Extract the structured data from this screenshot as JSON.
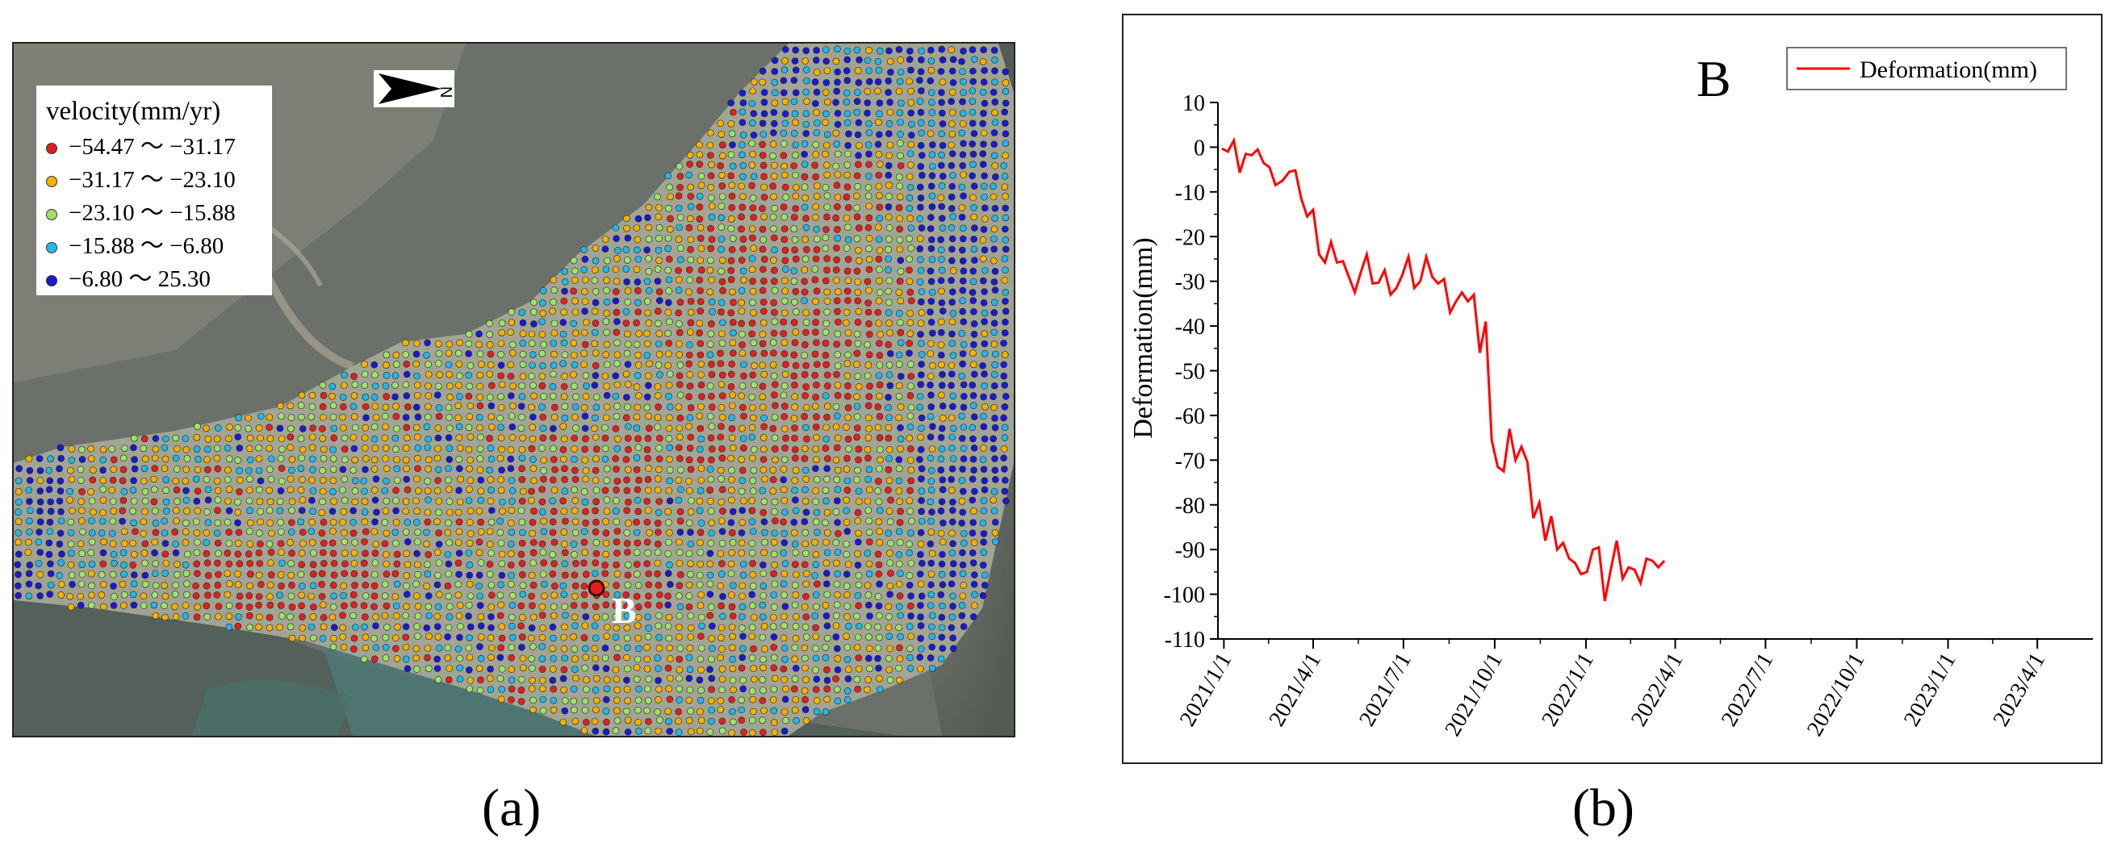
{
  "panels": {
    "a_caption": "(a)",
    "b_caption": "(b)"
  },
  "map": {
    "legend_title": "velocity(mm/yr)",
    "legend_items": [
      {
        "label": "−54.47 ～ −31.17",
        "color": "#e02020"
      },
      {
        "label": "−31.17 ～ −23.10",
        "color": "#f5b000"
      },
      {
        "label": "−23.10 ～ −15.88",
        "color": "#9fe06a"
      },
      {
        "label": "−15.88 ～ −6.80",
        "color": "#23b6e8"
      },
      {
        "label": "−6.80 ～ 25.30",
        "color": "#1a1ad0"
      }
    ],
    "north_letter": "N",
    "point_label": "B"
  },
  "chart_data": {
    "type": "line",
    "annotation": "B",
    "ylabel": "Deformation(mm)",
    "xlabel": "",
    "ylim": [
      -110,
      10
    ],
    "yticks": [
      10,
      0,
      -10,
      -20,
      -30,
      -40,
      -50,
      -60,
      -70,
      -80,
      -90,
      -100,
      -110
    ],
    "xticks": [
      "2021/1/1",
      "2021/4/1",
      "2021/7/1",
      "2021/10/1",
      "2022/1/1",
      "2022/4/1",
      "2022/7/1",
      "2022/10/1",
      "2023/1/1",
      "2023/4/1"
    ],
    "xlim": [
      "2020-12-26",
      "2023-05-27"
    ],
    "series": [
      {
        "name": "Deformation(mm)",
        "color": "#ff0000",
        "points": [
          [
            "2020-12-30",
            -0.3
          ],
          [
            "2021-01-05",
            -1.0
          ],
          [
            "2021-01-11",
            1.5
          ],
          [
            "2021-01-17",
            -5.7
          ],
          [
            "2021-01-23",
            -1.5
          ],
          [
            "2021-01-29",
            -1.8
          ],
          [
            "2021-02-04",
            -0.5
          ],
          [
            "2021-02-10",
            -3.5
          ],
          [
            "2021-02-16",
            -4.5
          ],
          [
            "2021-02-22",
            -8.5
          ],
          [
            "2021-03-01",
            -7.5
          ],
          [
            "2021-03-08",
            -5.5
          ],
          [
            "2021-03-14",
            -5.2
          ],
          [
            "2021-03-20",
            -11.5
          ],
          [
            "2021-03-26",
            -15.5
          ],
          [
            "2021-04-01",
            -14.0
          ],
          [
            "2021-04-07",
            -24.0
          ],
          [
            "2021-04-13",
            -25.8
          ],
          [
            "2021-04-19",
            -21.2
          ],
          [
            "2021-04-25",
            -25.8
          ],
          [
            "2021-05-01",
            -25.5
          ],
          [
            "2021-05-07",
            -29.0
          ],
          [
            "2021-05-13",
            -32.5
          ],
          [
            "2021-05-19",
            -28.0
          ],
          [
            "2021-05-25",
            -24.0
          ],
          [
            "2021-05-31",
            -30.5
          ],
          [
            "2021-06-06",
            -30.3
          ],
          [
            "2021-06-12",
            -27.5
          ],
          [
            "2021-06-18",
            -33.0
          ],
          [
            "2021-06-24",
            -31.5
          ],
          [
            "2021-06-30",
            -28.5
          ],
          [
            "2021-07-06",
            -24.5
          ],
          [
            "2021-07-12",
            -31.5
          ],
          [
            "2021-07-18",
            -30.0
          ],
          [
            "2021-07-24",
            -24.5
          ],
          [
            "2021-07-30",
            -29.0
          ],
          [
            "2021-08-05",
            -30.5
          ],
          [
            "2021-08-11",
            -29.5
          ],
          [
            "2021-08-17",
            -37.0
          ],
          [
            "2021-08-23",
            -34.5
          ],
          [
            "2021-08-29",
            -32.5
          ],
          [
            "2021-09-04",
            -34.5
          ],
          [
            "2021-09-10",
            -33.0
          ],
          [
            "2021-09-16",
            -46.0
          ],
          [
            "2021-09-22",
            -39.0
          ],
          [
            "2021-09-28",
            -65.5
          ],
          [
            "2021-10-04",
            -71.5
          ],
          [
            "2021-10-10",
            -72.5
          ],
          [
            "2021-10-16",
            -63.0
          ],
          [
            "2021-10-22",
            -70.0
          ],
          [
            "2021-10-28",
            -67.0
          ],
          [
            "2021-11-03",
            -70.5
          ],
          [
            "2021-11-09",
            -83.0
          ],
          [
            "2021-11-15",
            -79.5
          ],
          [
            "2021-11-21",
            -88.0
          ],
          [
            "2021-11-27",
            -82.5
          ],
          [
            "2021-12-03",
            -90.0
          ],
          [
            "2021-12-09",
            -88.5
          ],
          [
            "2021-12-15",
            -92.0
          ],
          [
            "2021-12-21",
            -93.0
          ],
          [
            "2021-12-27",
            -95.5
          ],
          [
            "2022-01-02",
            -95.0
          ],
          [
            "2022-01-08",
            -90.0
          ],
          [
            "2022-01-14",
            -89.5
          ],
          [
            "2022-01-20",
            -101.5
          ],
          [
            "2022-01-26",
            -94.5
          ],
          [
            "2022-02-01",
            -88.0
          ],
          [
            "2022-02-07",
            -96.5
          ],
          [
            "2022-02-13",
            -94.0
          ],
          [
            "2022-02-19",
            -94.5
          ],
          [
            "2022-02-25",
            -97.5
          ],
          [
            "2022-03-03",
            -92.0
          ],
          [
            "2022-03-09",
            -92.5
          ],
          [
            "2022-03-15",
            -94.0
          ],
          [
            "2022-03-21",
            -92.5
          ]
        ]
      }
    ]
  }
}
